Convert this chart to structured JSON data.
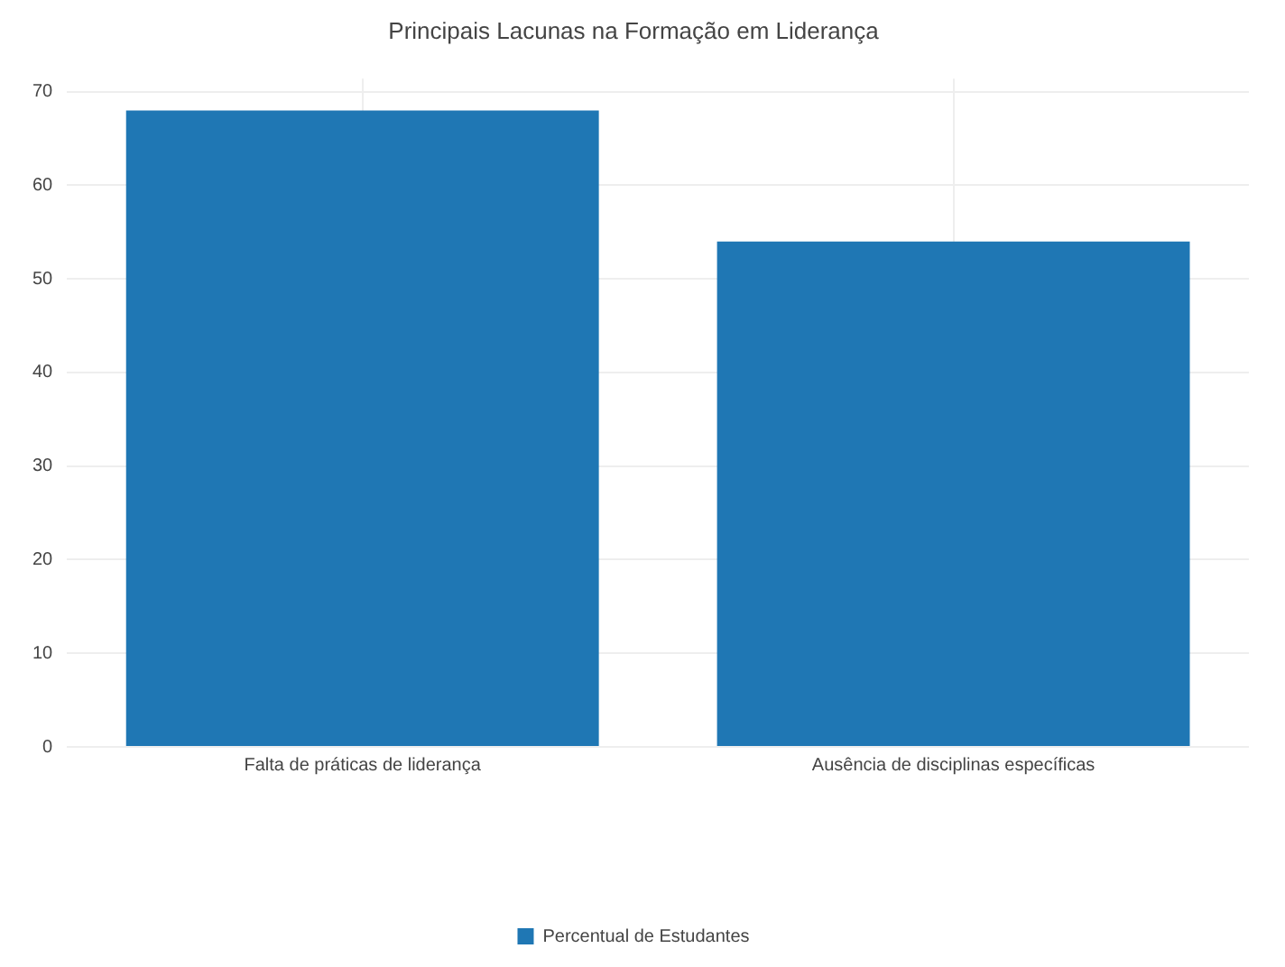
{
  "chart_data": {
    "type": "bar",
    "title": "Principais Lacunas na Formação em Liderança",
    "categories": [
      "Falta de práticas de liderança",
      "Ausência de disciplinas específicas"
    ],
    "series": [
      {
        "name": "Percentual de Estudantes",
        "color": "#1f77b4",
        "values": [
          68,
          54
        ]
      }
    ],
    "ylim": [
      0,
      71.4
    ],
    "yticks": [
      0,
      10,
      20,
      30,
      40,
      50,
      60,
      70
    ],
    "grid": true,
    "legend": "bottom"
  }
}
